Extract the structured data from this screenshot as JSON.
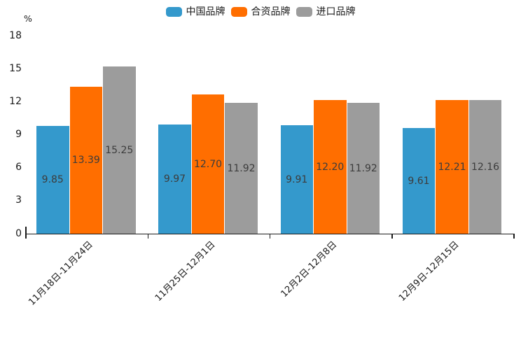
{
  "chart_data": {
    "type": "bar",
    "title": "",
    "categories": [
      "11月18日-11月24日",
      "11月25日-12月1日",
      "12月2日-12月8日",
      "12月9日-12月15日"
    ],
    "series": [
      {
        "key": "china-brand",
        "name": "中国品牌",
        "color": "#3499CC",
        "values": [
          9.85,
          9.97,
          9.91,
          9.61
        ],
        "labels": [
          "9.85",
          "9.97",
          "9.91",
          "9.61"
        ]
      },
      {
        "key": "joint-venture-brand",
        "name": "合资品牌",
        "color": "#FF6E00",
        "values": [
          13.39,
          12.7,
          12.2,
          12.21
        ],
        "labels": [
          "13.39",
          "12.70",
          "12.20",
          "12.21"
        ]
      },
      {
        "key": "import-brand",
        "name": "进口品牌",
        "color": "#9C9C9C",
        "values": [
          15.25,
          11.92,
          11.92,
          12.16
        ],
        "labels": [
          "15.25",
          "11.92",
          "11.92",
          "12.16"
        ]
      }
    ],
    "xlabel": "",
    "ylabel": "%",
    "ylim": [
      0,
      18
    ],
    "yticks": [
      0,
      3,
      6,
      9,
      12,
      15,
      18
    ],
    "legend_position": "top-center",
    "grid": false,
    "bar_label_position": "center",
    "axis_color": "#1A1A1A",
    "bar_label_color": "#3C3C3C"
  }
}
